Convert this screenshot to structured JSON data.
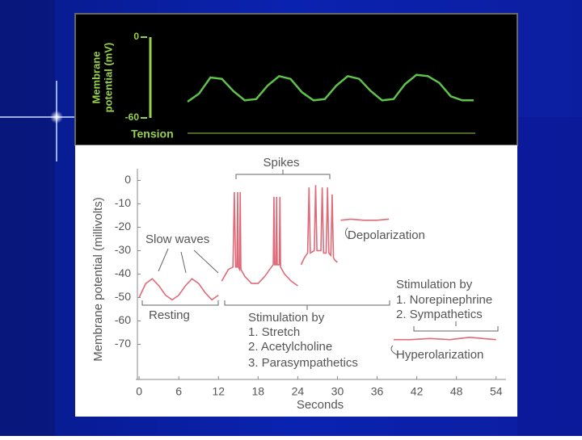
{
  "chart_data": [
    {
      "type": "line",
      "ylabel_lines": [
        "Membrane",
        "potential (mV)"
      ],
      "ylim": [
        -60,
        0
      ],
      "yticks": [
        0,
        -60
      ],
      "tension_label": "Tension",
      "color": "#5fc24a",
      "values": [
        -48,
        -42,
        -30,
        -31,
        -40,
        -47,
        -46,
        -36,
        -29,
        -31,
        -41,
        -47,
        -46,
        -36,
        -29,
        -31,
        -40,
        -47,
        -46,
        -35,
        -28,
        -29,
        -34,
        -44,
        -47,
        -47
      ]
    },
    {
      "type": "line",
      "ylabel": "Membrane potential (millivolts)",
      "xlabel": "Seconds",
      "xlim": [
        -0.5,
        55.5
      ],
      "xticks": [
        0,
        6,
        12,
        18,
        24,
        30,
        36,
        42,
        48,
        54
      ],
      "ylim": [
        -85,
        5
      ],
      "yticks": [
        0,
        -10,
        -20,
        -30,
        -40,
        -50,
        -60,
        -70
      ],
      "color": "#e06a78",
      "annotations": [
        "Spikes",
        "Slow waves",
        "Depolarization",
        "Resting",
        "Stimulation by",
        "1. Stretch",
        "2. Acetylcholine",
        "3. Parasympathetics",
        "Stimulation by",
        "1. Norepinephrine",
        "2. Sympathetics",
        "Hyperolarization"
      ],
      "x": [
        0,
        1,
        2,
        3,
        4,
        5,
        6,
        7,
        8,
        9,
        10,
        11,
        12,
        12.3,
        12.5,
        13.5,
        14.2,
        14.4,
        14.6,
        14.8,
        14.9,
        15.0,
        15.2,
        15.3,
        15.4,
        16,
        17,
        18,
        19,
        20,
        20.3,
        20.4,
        20.5,
        20.7,
        20.8,
        20.9,
        21.2,
        21.3,
        21.4,
        22,
        23,
        24,
        24.3,
        24.5,
        25,
        25.5,
        25.7,
        25.9,
        26.5,
        26.7,
        26.9,
        27.5,
        27.7,
        27.9,
        28.3,
        28.5,
        28.7,
        29,
        29.2,
        29.4,
        29.6,
        30,
        30.2,
        30.5,
        32,
        34,
        36,
        37.8,
        38,
        38.5,
        41,
        44,
        47,
        50,
        52,
        54
      ],
      "values": [
        -50,
        -44,
        -42,
        -45,
        -49,
        -51,
        -49,
        -45,
        -42,
        -44,
        -48,
        -51,
        -49,
        null,
        -43,
        -38,
        -37,
        -5,
        -37,
        -37,
        -5,
        -37,
        -38,
        -5,
        -38,
        -41,
        -44,
        -44,
        -41,
        -37,
        -36,
        -7,
        -36,
        -36,
        -7,
        -36,
        -36,
        -7,
        -37,
        -40,
        -43,
        -45,
        null,
        -36,
        -33,
        -31,
        -3,
        -31,
        -30,
        -2,
        -30,
        -30,
        -3,
        -31,
        -31,
        -3,
        -31,
        -32,
        -6,
        -33,
        -34,
        -35,
        null,
        -17,
        -16.5,
        -17,
        -17,
        -16.5,
        null,
        -68,
        -68,
        -67.5,
        -68,
        -67,
        -67.5,
        -68
      ]
    }
  ]
}
